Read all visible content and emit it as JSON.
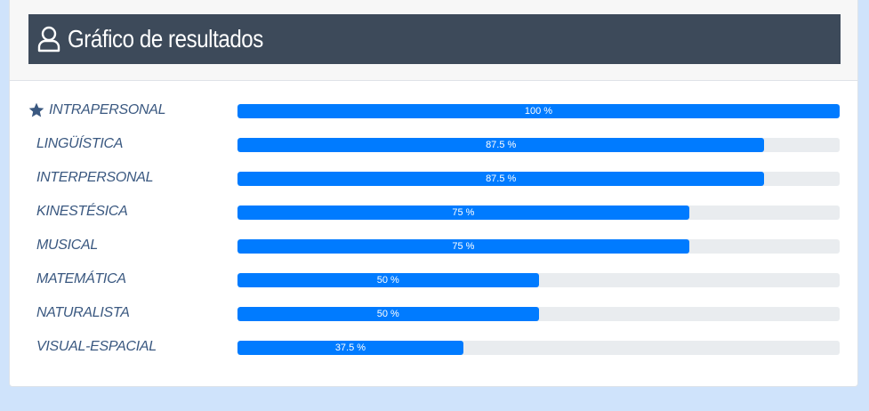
{
  "header": {
    "title": "Gráfico de resultados",
    "icon": "user-icon"
  },
  "chart_data": {
    "type": "bar",
    "orientation": "horizontal",
    "title": "Gráfico de resultados",
    "xlim": [
      0,
      100
    ],
    "unit": "%",
    "colors": {
      "bar": "#007bff",
      "track": "#e9ecef",
      "label": "#3a5880"
    },
    "rows": [
      {
        "category": "INTRAPERSONAL",
        "value": 100,
        "value_label": "100 %",
        "starred": true
      },
      {
        "category": "LINGÜÍSTICA",
        "value": 87.5,
        "value_label": "87.5 %",
        "starred": false
      },
      {
        "category": "INTERPERSONAL",
        "value": 87.5,
        "value_label": "87.5 %",
        "starred": false
      },
      {
        "category": "KINESTÉSICA",
        "value": 75,
        "value_label": "75 %",
        "starred": false
      },
      {
        "category": "MUSICAL",
        "value": 75,
        "value_label": "75 %",
        "starred": false
      },
      {
        "category": "MATEMÁTICA",
        "value": 50,
        "value_label": "50 %",
        "starred": false
      },
      {
        "category": "NATURALISTA",
        "value": 50,
        "value_label": "50 %",
        "starred": false
      },
      {
        "category": "VISUAL-ESPACIAL",
        "value": 37.5,
        "value_label": "37.5 %",
        "starred": false
      }
    ]
  }
}
